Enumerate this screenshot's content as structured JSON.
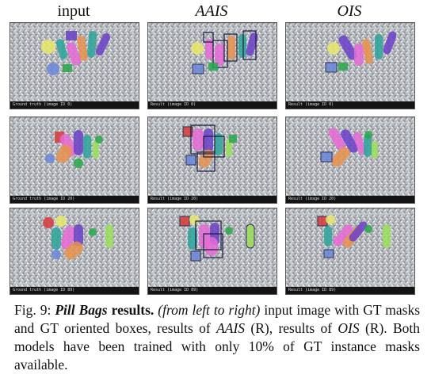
{
  "columns": {
    "input": "input",
    "aais": "AAIS",
    "ois": "OIS"
  },
  "panels": {
    "row1": {
      "input_status": "Ground truth (image ID 0)",
      "aais_status": "Result (image ID 0)",
      "ois_status": "Result (image ID 0)"
    },
    "row2": {
      "input_status": "Ground truth (image ID 20)",
      "aais_status": "Result (image ID 20)",
      "ois_status": "Result (image ID 20)"
    },
    "row3": {
      "input_status": "Ground truth (image ID 89)",
      "aais_status": "Result (image ID 89)",
      "ois_status": "Result (image ID 89)"
    }
  },
  "caption": {
    "fig_label": "Fig. 9:",
    "title": "Pill Bags",
    "title_suffix": "results.",
    "direction": "(from left to right)",
    "text1": "input image with GT masks and GT oriented boxes, results of",
    "aais": "AAIS",
    "text2": "(R), results of",
    "ois": "OIS",
    "text3": "(R). Both models have been trained with only 10% of GT instance masks available."
  },
  "colors": {
    "purple": "#6a3fc8",
    "pink": "#e66ad6",
    "orange": "#e8924e",
    "teal": "#2aa59a",
    "green": "#27a84a",
    "lime": "#9be05a",
    "yellow": "#e8e96a",
    "blue": "#6a86d8",
    "red": "#d63a3a",
    "box": "#1a1a40"
  }
}
